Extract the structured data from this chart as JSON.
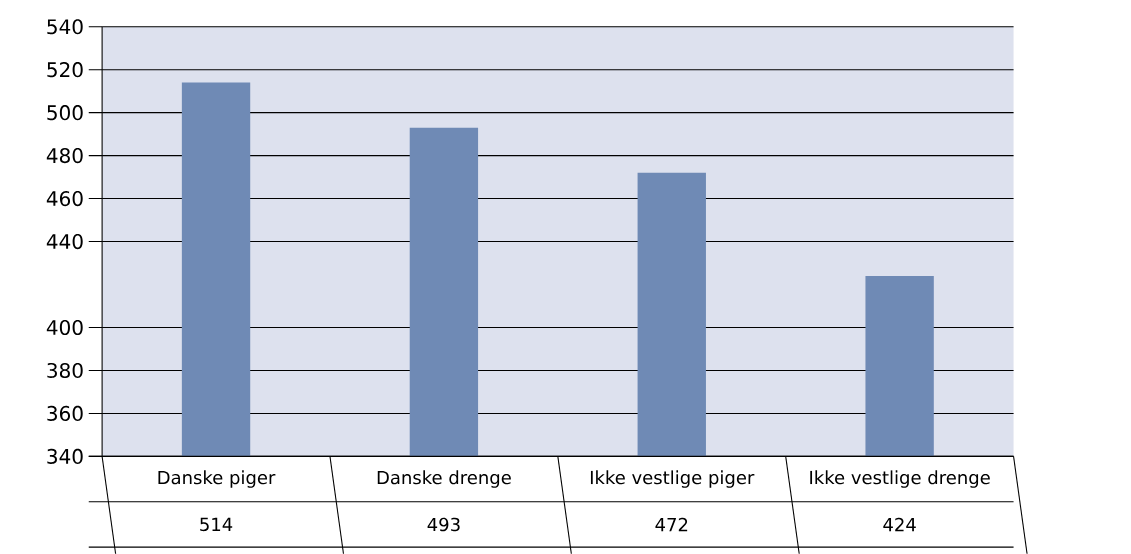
{
  "chart_data": {
    "type": "bar",
    "categories": [
      "Danske piger",
      "Danske drenge",
      "Ikke vestlige piger",
      "Ikke vestlige drenge"
    ],
    "values": [
      514,
      493,
      472,
      424
    ],
    "color": "#6f8ab5",
    "ylim": [
      340,
      540
    ],
    "yticks": [
      340,
      360,
      380,
      400,
      440,
      460,
      480,
      500,
      520,
      540
    ],
    "grid": "y",
    "data_labels": true
  }
}
